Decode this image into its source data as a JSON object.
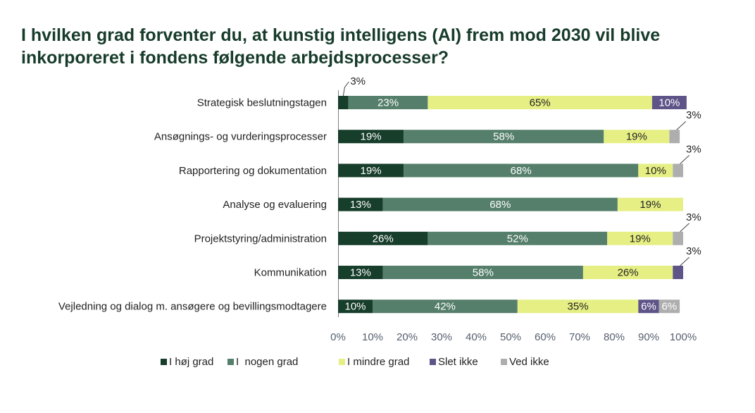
{
  "title_lines": [
    "I hvilken grad forventer du, at kunstig intelligens (AI) frem mod 2030 vil blive",
    "inkorporeret i fondens følgende arbejdsprocesser?"
  ],
  "colors": {
    "I høj grad": "#173d2b",
    "I  nogen grad": "#557f6b",
    "I mindre grad": "#e6ef84",
    "Slet ikke": "#5e5488",
    "Ved ikke": "#aeaeae",
    "title": "#173c2a",
    "label": "#222222"
  },
  "chart_data": {
    "type": "bar",
    "orientation": "horizontal",
    "stacked": true,
    "title": "I hvilken grad forventer du, at kunstig intelligens (AI) frem mod 2030 vil blive inkorporeret i fondens følgende arbejdsprocesser?",
    "categories": [
      "Strategisk beslutningstagen",
      "Ansøgnings- og vurderingsprocesser",
      "Rapportering og dokumentation",
      "Analyse og evaluering",
      "Projektstyring/administration",
      "Kommunikation",
      "Vejledning og dialog m. ansøgere og bevillingsmodtagere"
    ],
    "series": [
      {
        "name": "I høj grad",
        "values": [
          3,
          19,
          19,
          13,
          26,
          13,
          10
        ]
      },
      {
        "name": "I  nogen grad",
        "values": [
          23,
          58,
          68,
          68,
          52,
          58,
          42
        ]
      },
      {
        "name": "I mindre grad",
        "values": [
          65,
          19,
          10,
          19,
          19,
          26,
          35
        ]
      },
      {
        "name": "Slet ikke",
        "values": [
          10,
          0,
          0,
          0,
          0,
          3,
          6
        ]
      },
      {
        "name": "Ved ikke",
        "values": [
          0,
          3,
          3,
          0,
          3,
          0,
          6
        ]
      }
    ],
    "xlim": [
      0,
      100
    ],
    "xticks": [
      "0%",
      "10%",
      "20%",
      "30%",
      "40%",
      "50%",
      "60%",
      "70%",
      "80%",
      "90%",
      "100%"
    ],
    "grid": false,
    "legend_position": "bottom",
    "xlabel": "",
    "ylabel": ""
  }
}
